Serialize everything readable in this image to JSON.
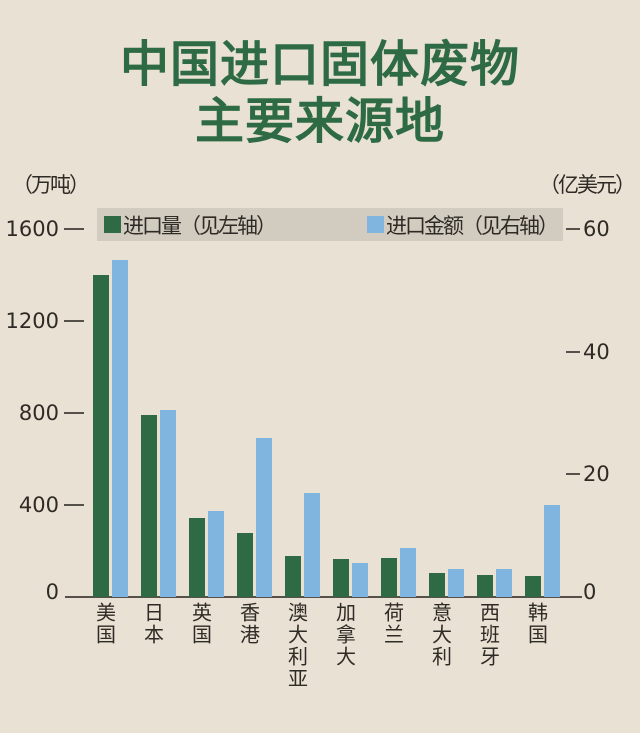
{
  "page": {
    "background": "#e9e1d3",
    "text_color": "#2e2a25"
  },
  "title": {
    "line1": "中国进口固体废物",
    "line2": "主要来源地",
    "color": "#2e6b44"
  },
  "axes_units": {
    "left": "（万吨）",
    "right": "（亿美元）"
  },
  "legend": {
    "strip_color": "#d2ccc0",
    "items": [
      {
        "label": "进口量（见左轴）",
        "color": "#2e6b44"
      },
      {
        "label": "进口金额（见右轴）",
        "color": "#80b5e0"
      }
    ]
  },
  "chart_data": {
    "type": "bar",
    "title": "中国进口固体废物主要来源地",
    "categories": [
      "美国",
      "日本",
      "英国",
      "香港",
      "澳大利亚",
      "加拿大",
      "荷兰",
      "意大利",
      "西班牙",
      "韩国"
    ],
    "series": [
      {
        "name": "进口量（见左轴）",
        "axis": "left",
        "unit": "万吨",
        "color": "#2e6b44",
        "values": [
          1400,
          790,
          345,
          280,
          180,
          165,
          170,
          105,
          95,
          90
        ]
      },
      {
        "name": "进口金额（见右轴）",
        "axis": "right",
        "unit": "亿美元",
        "color": "#80b5e0",
        "values": [
          55,
          30.5,
          14,
          26,
          17,
          5.5,
          8,
          4.5,
          4.5,
          15
        ]
      }
    ],
    "left_axis": {
      "unit": "（万吨）",
      "min": 0,
      "max": 1600,
      "ticks": [
        1600,
        1200,
        800,
        400,
        0
      ]
    },
    "right_axis": {
      "unit": "（亿美元）",
      "min": 0,
      "max": 60,
      "ticks": [
        60,
        40,
        20,
        0
      ]
    },
    "grid": false,
    "legend_position": "top"
  }
}
